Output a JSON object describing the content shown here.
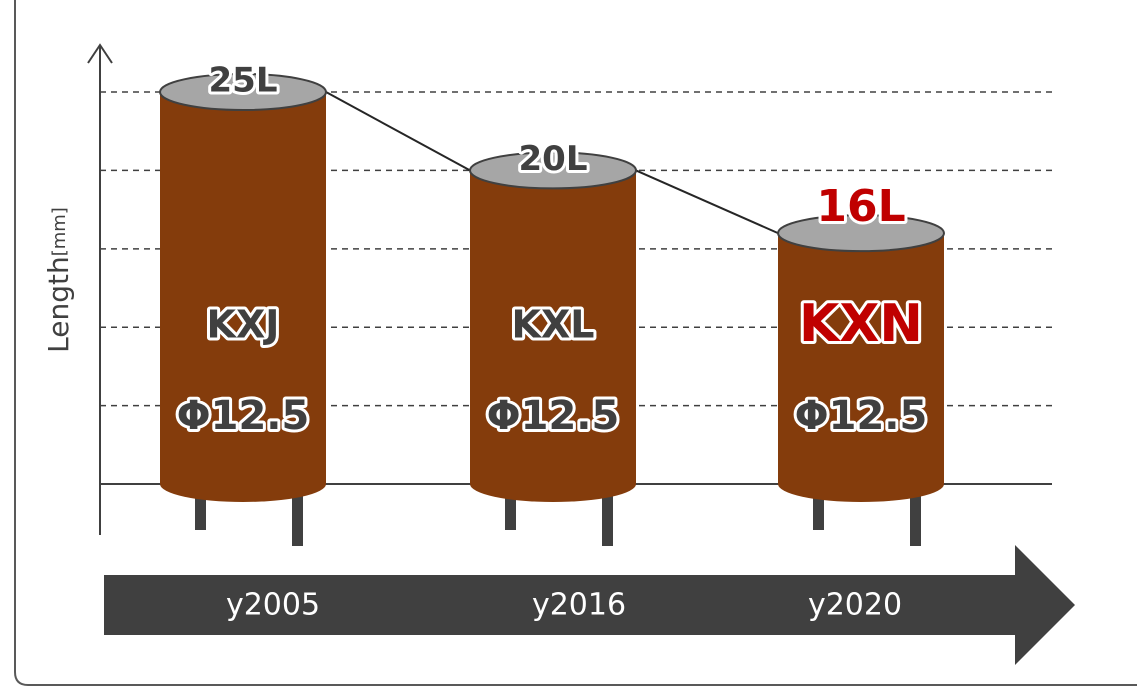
{
  "chart_data": {
    "type": "cylinder",
    "y_label": "Length",
    "y_unit": "[mm]",
    "categories": [
      "y2005",
      "y2016",
      "y2020"
    ],
    "products": [
      "KXJ",
      "KXL",
      "KXN"
    ],
    "diameters": [
      "Φ12.5",
      "Φ12.5",
      "Φ12.5"
    ],
    "values": [
      25,
      20,
      16
    ],
    "value_labels": [
      "25L",
      "20L",
      "16L"
    ],
    "ylim": [
      0,
      28
    ],
    "gridlines": [
      5,
      10,
      15,
      20,
      25
    ],
    "color": "#843c0c",
    "top_color": "#a6a6a6",
    "text_color": "#404040",
    "highlight": 2,
    "highlight_color": "#c00000"
  }
}
